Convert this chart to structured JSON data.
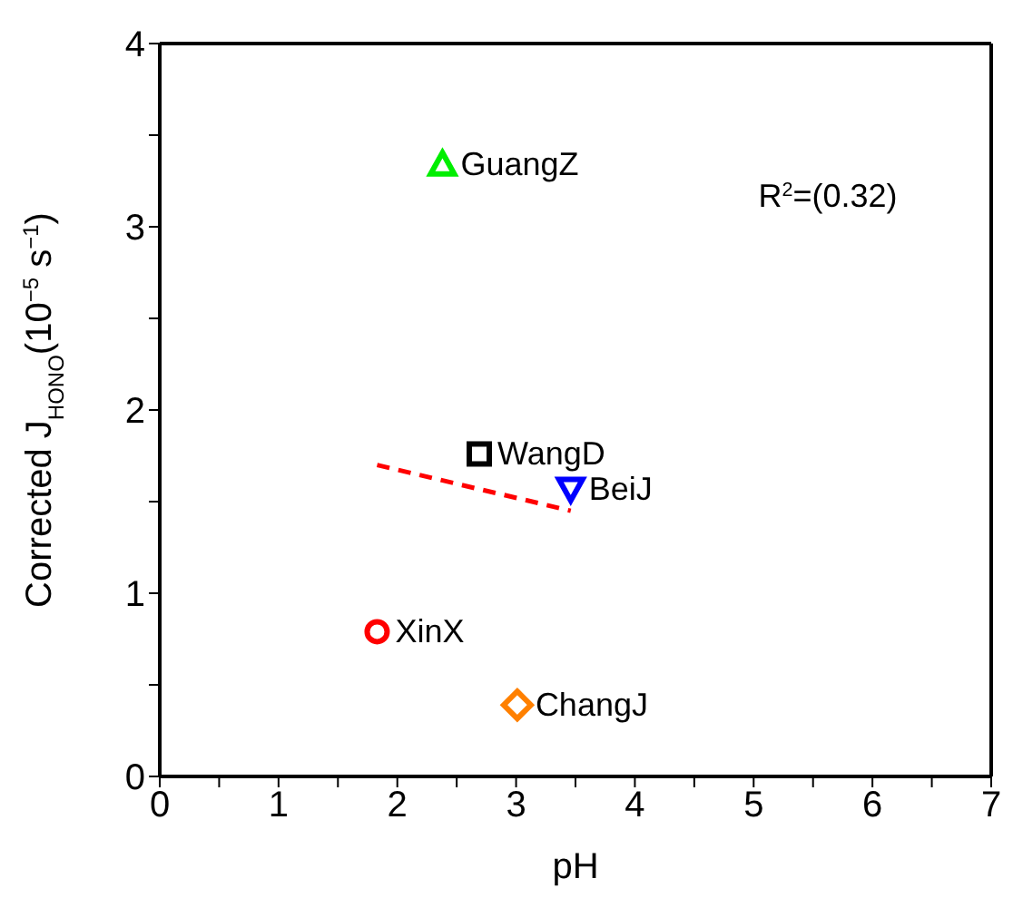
{
  "chart_data": {
    "type": "scatter",
    "xlabel": "pH",
    "ylabel": "Corrected J$_{HONO}$(10$^{−5}$ s$^{−1}$)",
    "xlim": [
      0,
      7
    ],
    "xticks": [
      0,
      {
        "value": 0.5,
        "label": null
      },
      1,
      {
        "value": 1.5,
        "label": null
      },
      2,
      {
        "value": 2.5,
        "label": null
      },
      3,
      {
        "value": 3.5,
        "label": null
      },
      4,
      {
        "value": 4.5,
        "label": null
      },
      5,
      {
        "value": 5.5,
        "label": null
      },
      6,
      {
        "value": 6.5,
        "label": null
      },
      7
    ],
    "ylim": [
      0,
      4
    ],
    "yticks": [
      0,
      {
        "value": 0.5,
        "label": null
      },
      1,
      {
        "value": 1.5,
        "label": null
      },
      2,
      {
        "value": 2.5,
        "label": null
      },
      3,
      {
        "value": 3.5,
        "label": null
      },
      4
    ],
    "annotations": [
      "R$^{2}$=(0.32)"
    ],
    "series": [
      {
        "name": "GuangZ",
        "color": "#00ee00",
        "marker": "triangle",
        "x": [
          2.38
        ],
        "values": [
          3.34
        ]
      },
      {
        "name": "WangD",
        "color": "#000000",
        "marker": "square",
        "x": [
          2.69
        ],
        "values": [
          1.76
        ]
      },
      {
        "name": "BeiJ",
        "color": "#0000ff",
        "marker": "triangle-down",
        "x": [
          3.46
        ],
        "values": [
          1.57
        ]
      },
      {
        "name": "XinX",
        "color": "#ff0000",
        "marker": "circle",
        "x": [
          1.83
        ],
        "values": [
          0.79
        ]
      },
      {
        "name": "ChangJ",
        "color": "#ff8000",
        "marker": "diamond",
        "x": [
          3.01
        ],
        "values": [
          0.39
        ]
      },
      {
        "type": "line",
        "color": "#ff0000",
        "line_style": "dashed",
        "marker": "none",
        "x": [
          1.83,
          3.46
        ],
        "values": [
          1.7,
          1.45
        ]
      }
    ]
  }
}
